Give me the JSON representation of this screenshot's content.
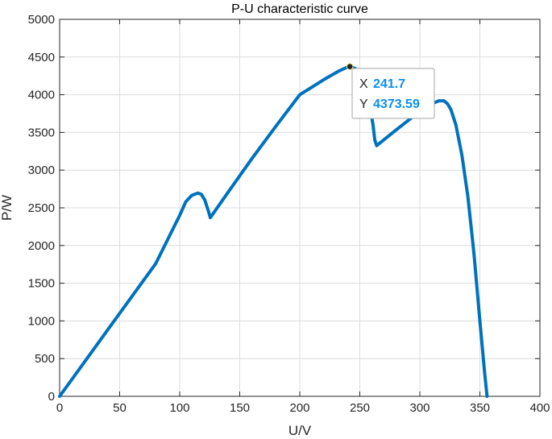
{
  "colors": {
    "curve": "#0072bd",
    "grid": "#dcdcdc",
    "axis": "#262626",
    "datatip_value": "#0a8ff0"
  },
  "chart_data": {
    "type": "line",
    "title": "P-U characteristic curve",
    "xlabel": "U/V",
    "ylabel": "P/W",
    "xlim": [
      0,
      400
    ],
    "ylim": [
      0,
      5000
    ],
    "xticks": [
      0,
      50,
      100,
      150,
      200,
      250,
      300,
      350,
      400
    ],
    "yticks": [
      0,
      500,
      1000,
      1500,
      2000,
      2500,
      3000,
      3500,
      4000,
      4500,
      5000
    ],
    "grid": true,
    "series": [
      {
        "x": [
          0,
          20,
          40,
          60,
          80,
          100,
          105,
          110,
          115,
          118,
          121,
          124,
          125.5,
          140,
          160,
          180,
          200,
          220,
          232,
          238,
          241.7,
          246,
          250,
          255,
          258,
          261,
          262.5,
          264,
          280,
          300,
          310,
          316,
          320,
          323,
          326,
          330,
          335,
          340,
          345,
          350,
          354,
          356
        ],
        "y": [
          0,
          440,
          880,
          1320,
          1760,
          2400,
          2580,
          2665,
          2695,
          2680,
          2600,
          2450,
          2370,
          2700,
          3150,
          3580,
          4000,
          4200,
          4310,
          4355,
          4373.59,
          4350,
          4270,
          4100,
          3900,
          3600,
          3400,
          3325,
          3530,
          3780,
          3880,
          3920,
          3920,
          3880,
          3800,
          3600,
          3200,
          2650,
          1900,
          1000,
          300,
          0
        ]
      }
    ],
    "datatip": {
      "x": 241.7,
      "y": 4373.59,
      "x_label": "X",
      "y_label": "Y",
      "x_text": "241.7",
      "y_text": "4373.59"
    }
  }
}
